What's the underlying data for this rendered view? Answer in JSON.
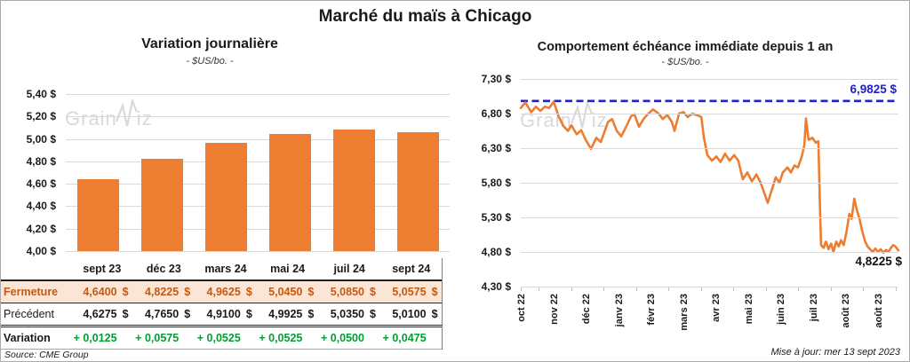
{
  "page": {
    "title": "Marché du maïs à Chicago",
    "source_note": "Source: CME Group",
    "updated_note": "Mise à jour: mer 13 sept 2023",
    "watermark": {
      "part1": "Grain",
      "part2": "iz"
    }
  },
  "colors": {
    "orange": "#ed7d31",
    "peach_row_bg": "#fbe5d6",
    "rust_text": "#c55a11",
    "green": "#00a030",
    "blue": "#2121c6",
    "grid": "#d9d9d9",
    "watermark": "#d9d9d9"
  },
  "chart_data": [
    {
      "type": "bar",
      "title": "Variation journalière",
      "subtitle": "- $US/bo. -",
      "categories": [
        "sept 23",
        "déc 23",
        "mars 24",
        "mai 24",
        "juil 24",
        "sept 24"
      ],
      "values": [
        4.64,
        4.8225,
        4.9625,
        5.045,
        5.085,
        5.0575
      ],
      "ylim": [
        4.0,
        5.4
      ],
      "yticks": [
        {
          "v": 5.4,
          "label": "5,40 $"
        },
        {
          "v": 5.2,
          "label": "5,20 $"
        },
        {
          "v": 5.0,
          "label": "5,00 $"
        },
        {
          "v": 4.8,
          "label": "4,80 $"
        },
        {
          "v": 4.6,
          "label": "4,60 $"
        },
        {
          "v": 4.4,
          "label": "4,40 $"
        },
        {
          "v": 4.2,
          "label": "4,20 $"
        },
        {
          "v": 4.0,
          "label": "4,00 $"
        }
      ],
      "grid": true,
      "bar_color": "#ed7d31"
    },
    {
      "type": "line",
      "title": "Comportement échéance immédiate depuis 1 an",
      "subtitle": "- $US/bo. -",
      "ylim": [
        4.3,
        7.3
      ],
      "yticks": [
        {
          "v": 7.3,
          "label": "7,30 $"
        },
        {
          "v": 6.8,
          "label": "6,80 $"
        },
        {
          "v": 6.3,
          "label": "6,30 $"
        },
        {
          "v": 5.8,
          "label": "5,80 $"
        },
        {
          "v": 5.3,
          "label": "5,30 $"
        },
        {
          "v": 4.8,
          "label": "4,80 $"
        },
        {
          "v": 4.3,
          "label": "4,30 $"
        }
      ],
      "x_labels": [
        "oct 22",
        "nov 22",
        "déc 22",
        "janv 23",
        "févr 23",
        "mars 23",
        "avr 23",
        "mai 23",
        "juin 23",
        "juil 23",
        "août 23",
        "août 23"
      ],
      "high_line": {
        "value": 6.9825,
        "label": "6,9825 $"
      },
      "last_value": 4.8225,
      "last_label": "4,8225 $",
      "line_color": "#ed7d31",
      "grid": true,
      "points": [
        [
          0.0,
          6.88
        ],
        [
          0.012,
          6.96
        ],
        [
          0.028,
          6.82
        ],
        [
          0.04,
          6.9
        ],
        [
          0.052,
          6.84
        ],
        [
          0.064,
          6.9
        ],
        [
          0.075,
          6.88
        ],
        [
          0.087,
          6.97
        ],
        [
          0.101,
          6.75
        ],
        [
          0.113,
          6.62
        ],
        [
          0.125,
          6.55
        ],
        [
          0.134,
          6.63
        ],
        [
          0.148,
          6.5
        ],
        [
          0.16,
          6.56
        ],
        [
          0.172,
          6.42
        ],
        [
          0.186,
          6.29
        ],
        [
          0.2,
          6.45
        ],
        [
          0.212,
          6.39
        ],
        [
          0.231,
          6.68
        ],
        [
          0.242,
          6.72
        ],
        [
          0.254,
          6.55
        ],
        [
          0.266,
          6.47
        ],
        [
          0.28,
          6.62
        ],
        [
          0.292,
          6.76
        ],
        [
          0.301,
          6.79
        ],
        [
          0.313,
          6.61
        ],
        [
          0.325,
          6.72
        ],
        [
          0.336,
          6.79
        ],
        [
          0.35,
          6.86
        ],
        [
          0.365,
          6.8
        ],
        [
          0.376,
          6.72
        ],
        [
          0.388,
          6.78
        ],
        [
          0.4,
          6.68
        ],
        [
          0.407,
          6.55
        ],
        [
          0.419,
          6.8
        ],
        [
          0.431,
          6.82
        ],
        [
          0.442,
          6.75
        ],
        [
          0.454,
          6.8
        ],
        [
          0.466,
          6.78
        ],
        [
          0.478,
          6.75
        ],
        [
          0.485,
          6.45
        ],
        [
          0.494,
          6.2
        ],
        [
          0.506,
          6.12
        ],
        [
          0.518,
          6.18
        ],
        [
          0.529,
          6.1
        ],
        [
          0.541,
          6.22
        ],
        [
          0.553,
          6.12
        ],
        [
          0.565,
          6.2
        ],
        [
          0.576,
          6.12
        ],
        [
          0.588,
          5.85
        ],
        [
          0.6,
          5.95
        ],
        [
          0.612,
          5.82
        ],
        [
          0.624,
          5.92
        ],
        [
          0.635,
          5.8
        ],
        [
          0.645,
          5.65
        ],
        [
          0.654,
          5.51
        ],
        [
          0.666,
          5.72
        ],
        [
          0.675,
          5.88
        ],
        [
          0.685,
          5.8
        ],
        [
          0.694,
          5.95
        ],
        [
          0.706,
          6.02
        ],
        [
          0.715,
          5.95
        ],
        [
          0.725,
          6.05
        ],
        [
          0.734,
          6.02
        ],
        [
          0.744,
          6.18
        ],
        [
          0.751,
          6.35
        ],
        [
          0.755,
          6.73
        ],
        [
          0.762,
          6.42
        ],
        [
          0.772,
          6.45
        ],
        [
          0.781,
          6.38
        ],
        [
          0.788,
          6.4
        ],
        [
          0.792,
          5.5
        ],
        [
          0.795,
          4.9
        ],
        [
          0.802,
          4.86
        ],
        [
          0.808,
          4.95
        ],
        [
          0.815,
          4.84
        ],
        [
          0.822,
          4.92
        ],
        [
          0.828,
          4.8
        ],
        [
          0.835,
          4.95
        ],
        [
          0.842,
          4.88
        ],
        [
          0.848,
          4.97
        ],
        [
          0.855,
          4.9
        ],
        [
          0.862,
          5.08
        ],
        [
          0.87,
          5.35
        ],
        [
          0.876,
          5.28
        ],
        [
          0.883,
          5.57
        ],
        [
          0.89,
          5.4
        ],
        [
          0.897,
          5.28
        ],
        [
          0.904,
          5.1
        ],
        [
          0.912,
          4.95
        ],
        [
          0.918,
          4.88
        ],
        [
          0.925,
          4.84
        ],
        [
          0.932,
          4.8
        ],
        [
          0.939,
          4.85
        ],
        [
          0.946,
          4.8
        ],
        [
          0.953,
          4.84
        ],
        [
          0.96,
          4.79
        ],
        [
          0.967,
          4.83
        ],
        [
          0.974,
          4.8
        ],
        [
          0.98,
          4.86
        ],
        [
          0.986,
          4.9
        ],
        [
          0.992,
          4.88
        ],
        [
          1.0,
          4.8225
        ]
      ]
    }
  ],
  "table": {
    "header": [
      "sept 23",
      "déc 23",
      "mars 24",
      "mai 24",
      "juil 24",
      "sept 24"
    ],
    "rows": [
      {
        "label": "Fermeture",
        "values": [
          "4,6400 $",
          "4,8225 $",
          "4,9625 $",
          "5,0450 $",
          "5,0850 $",
          "5,0575 $"
        ]
      },
      {
        "label": "Précédent",
        "values": [
          "4,6275 $",
          "4,7650 $",
          "4,9100 $",
          "4,9925 $",
          "5,0350 $",
          "5,0100 $"
        ]
      },
      {
        "label": "Variation",
        "values": [
          "+ 0,0125",
          "+ 0,0575",
          "+ 0,0525",
          "+ 0,0525",
          "+ 0,0500",
          "+ 0,0475"
        ]
      }
    ]
  }
}
